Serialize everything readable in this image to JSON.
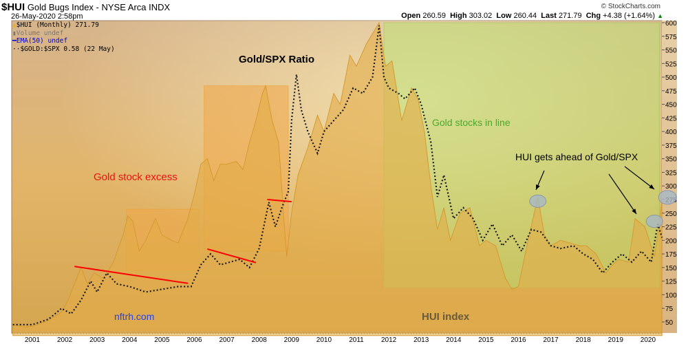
{
  "header": {
    "symbol": "$HUI",
    "name": "Gold Bugs Index - NYSE Arca INDX",
    "datetime": "26-May-2020 2:58pm",
    "brand": "© StockCharts.com",
    "open_label": "Open",
    "open": "260.59",
    "high_label": "High",
    "high": "303.02",
    "low_label": "Low",
    "low": "260.44",
    "last_label": "Last",
    "last": "271.79",
    "chg_label": "Chg",
    "chg": "+4.38 (+1.64%)"
  },
  "legend": {
    "hui": "$HUI (Monthly) 271.79",
    "volume": "Volume undef",
    "ema": "EMA(50) undef",
    "ratio": "$GOLD:$SPX 0.58 (22 May)"
  },
  "colors": {
    "hui_area": "#e2ac48",
    "ratio_line": "#1a1a1a",
    "ema": "#0000cc",
    "excess_box": "#f0a848",
    "inline_box": "#b8e070",
    "red_line": "#ff0000",
    "circle": "#a8b8c8"
  },
  "chart_data": {
    "type": "area",
    "ylim": [
      25,
      600
    ],
    "yticks": [
      50,
      75,
      100,
      125,
      150,
      175,
      200,
      225,
      250,
      275,
      300,
      325,
      350,
      375,
      400,
      425,
      450,
      475,
      500,
      525,
      550,
      575,
      600
    ],
    "xticks": [
      "2001",
      "2002",
      "2003",
      "2004",
      "2005",
      "2006",
      "2007",
      "2008",
      "2009",
      "2010",
      "2011",
      "2012",
      "2013",
      "2014",
      "2015",
      "2016",
      "2017",
      "2018",
      "2019",
      "2020"
    ],
    "xlim": [
      2000.36,
      2020.45
    ],
    "grid": false,
    "legend_placement": "top-left",
    "series": [
      {
        "name": "$HUI (Monthly)",
        "style": "area",
        "points": [
          [
            2000.4,
            45
          ],
          [
            2000.8,
            40
          ],
          [
            2001.0,
            42
          ],
          [
            2001.4,
            50
          ],
          [
            2001.7,
            60
          ],
          [
            2001.9,
            68
          ],
          [
            2002.1,
            90
          ],
          [
            2002.3,
            120
          ],
          [
            2002.5,
            150
          ],
          [
            2002.7,
            120
          ],
          [
            2002.9,
            140
          ],
          [
            2003.2,
            130
          ],
          [
            2003.5,
            160
          ],
          [
            2003.8,
            210
          ],
          [
            2003.95,
            245
          ],
          [
            2004.1,
            235
          ],
          [
            2004.3,
            180
          ],
          [
            2004.5,
            200
          ],
          [
            2004.8,
            240
          ],
          [
            2005.0,
            210
          ],
          [
            2005.3,
            200
          ],
          [
            2005.5,
            195
          ],
          [
            2005.8,
            240
          ],
          [
            2006.0,
            285
          ],
          [
            2006.2,
            340
          ],
          [
            2006.4,
            350
          ],
          [
            2006.6,
            310
          ],
          [
            2006.8,
            340
          ],
          [
            2007.0,
            340
          ],
          [
            2007.3,
            345
          ],
          [
            2007.5,
            330
          ],
          [
            2007.7,
            380
          ],
          [
            2007.9,
            420
          ],
          [
            2008.1,
            470
          ],
          [
            2008.2,
            484
          ],
          [
            2008.4,
            420
          ],
          [
            2008.6,
            380
          ],
          [
            2008.75,
            250
          ],
          [
            2008.85,
            170
          ],
          [
            2009.0,
            250
          ],
          [
            2009.2,
            320
          ],
          [
            2009.5,
            370
          ],
          [
            2009.8,
            430
          ],
          [
            2010.0,
            400
          ],
          [
            2010.3,
            470
          ],
          [
            2010.5,
            450
          ],
          [
            2010.8,
            540
          ],
          [
            2011.0,
            520
          ],
          [
            2011.3,
            560
          ],
          [
            2011.6,
            590
          ],
          [
            2011.7,
            600
          ],
          [
            2011.9,
            520
          ],
          [
            2012.1,
            530
          ],
          [
            2012.4,
            420
          ],
          [
            2012.7,
            480
          ],
          [
            2012.9,
            460
          ],
          [
            2013.1,
            400
          ],
          [
            2013.3,
            300
          ],
          [
            2013.5,
            220
          ],
          [
            2013.7,
            260
          ],
          [
            2013.9,
            200
          ],
          [
            2014.2,
            250
          ],
          [
            2014.5,
            260
          ],
          [
            2014.8,
            190
          ],
          [
            2015.0,
            200
          ],
          [
            2015.3,
            190
          ],
          [
            2015.6,
            130
          ],
          [
            2015.8,
            110
          ],
          [
            2016.0,
            115
          ],
          [
            2016.3,
            200
          ],
          [
            2016.6,
            280
          ],
          [
            2016.8,
            210
          ],
          [
            2017.0,
            190
          ],
          [
            2017.3,
            200
          ],
          [
            2017.6,
            195
          ],
          [
            2017.9,
            190
          ],
          [
            2018.1,
            190
          ],
          [
            2018.4,
            175
          ],
          [
            2018.7,
            140
          ],
          [
            2018.9,
            155
          ],
          [
            2019.1,
            165
          ],
          [
            2019.4,
            160
          ],
          [
            2019.6,
            240
          ],
          [
            2019.9,
            225
          ],
          [
            2020.2,
            170
          ],
          [
            2020.35,
            230
          ],
          [
            2020.43,
            272
          ]
        ]
      },
      {
        "name": "$GOLD:$SPX",
        "style": "dotted",
        "points": [
          [
            2000.4,
            45
          ],
          [
            2001.0,
            45
          ],
          [
            2001.5,
            55
          ],
          [
            2001.9,
            75
          ],
          [
            2002.2,
            65
          ],
          [
            2002.5,
            90
          ],
          [
            2002.8,
            125
          ],
          [
            2003.0,
            105
          ],
          [
            2003.3,
            140
          ],
          [
            2003.6,
            120
          ],
          [
            2004.0,
            115
          ],
          [
            2004.5,
            105
          ],
          [
            2005.0,
            110
          ],
          [
            2005.5,
            115
          ],
          [
            2005.9,
            115
          ],
          [
            2006.2,
            155
          ],
          [
            2006.5,
            175
          ],
          [
            2006.8,
            155
          ],
          [
            2007.1,
            160
          ],
          [
            2007.4,
            165
          ],
          [
            2007.7,
            150
          ],
          [
            2008.0,
            185
          ],
          [
            2008.3,
            270
          ],
          [
            2008.5,
            225
          ],
          [
            2008.7,
            260
          ],
          [
            2008.9,
            290
          ],
          [
            2009.0,
            420
          ],
          [
            2009.15,
            505
          ],
          [
            2009.3,
            440
          ],
          [
            2009.5,
            400
          ],
          [
            2009.8,
            360
          ],
          [
            2010.0,
            400
          ],
          [
            2010.3,
            420
          ],
          [
            2010.6,
            440
          ],
          [
            2010.9,
            480
          ],
          [
            2011.2,
            470
          ],
          [
            2011.5,
            500
          ],
          [
            2011.7,
            595
          ],
          [
            2011.85,
            500
          ],
          [
            2012.0,
            480
          ],
          [
            2012.3,
            470
          ],
          [
            2012.5,
            460
          ],
          [
            2012.8,
            480
          ],
          [
            2013.0,
            450
          ],
          [
            2013.3,
            380
          ],
          [
            2013.5,
            280
          ],
          [
            2013.7,
            320
          ],
          [
            2014.0,
            240
          ],
          [
            2014.3,
            260
          ],
          [
            2014.6,
            240
          ],
          [
            2014.9,
            200
          ],
          [
            2015.2,
            230
          ],
          [
            2015.5,
            190
          ],
          [
            2015.8,
            210
          ],
          [
            2016.1,
            180
          ],
          [
            2016.4,
            220
          ],
          [
            2016.7,
            215
          ],
          [
            2017.0,
            190
          ],
          [
            2017.3,
            185
          ],
          [
            2017.7,
            190
          ],
          [
            2018.0,
            175
          ],
          [
            2018.3,
            165
          ],
          [
            2018.6,
            140
          ],
          [
            2018.9,
            160
          ],
          [
            2019.2,
            175
          ],
          [
            2019.5,
            160
          ],
          [
            2019.8,
            180
          ],
          [
            2020.1,
            160
          ],
          [
            2020.3,
            230
          ],
          [
            2020.43,
            205
          ]
        ]
      }
    ],
    "annotations": {
      "boxes": [
        {
          "kind": "excess",
          "from": [
            2003.9,
            257
          ],
          "to": [
            2006.15,
            145
          ]
        },
        {
          "kind": "excess",
          "from": [
            2006.3,
            484
          ],
          "to": [
            2008.9,
            180
          ]
        },
        {
          "kind": "inline",
          "from": [
            2011.85,
            600
          ],
          "to": [
            2020.35,
            113
          ]
        }
      ],
      "red_lines": [
        [
          [
            2002.3,
            152
          ],
          [
            2005.8,
            121
          ]
        ],
        [
          [
            2006.4,
            184
          ],
          [
            2007.9,
            159
          ]
        ],
        [
          [
            2008.25,
            275
          ],
          [
            2009.0,
            271
          ]
        ]
      ],
      "circles": [
        [
          2016.6,
          272
        ],
        [
          2020.2,
          235
        ],
        [
          2020.6,
          279
        ]
      ],
      "texts": {
        "ratio_title": "Gold/SPX Ratio",
        "excess": "Gold stock excess",
        "inline": "Gold stocks in line",
        "ahead": "HUI gets ahead of Gold/SPX",
        "site": "nftrh.com",
        "hui_index": "HUI index"
      }
    }
  }
}
